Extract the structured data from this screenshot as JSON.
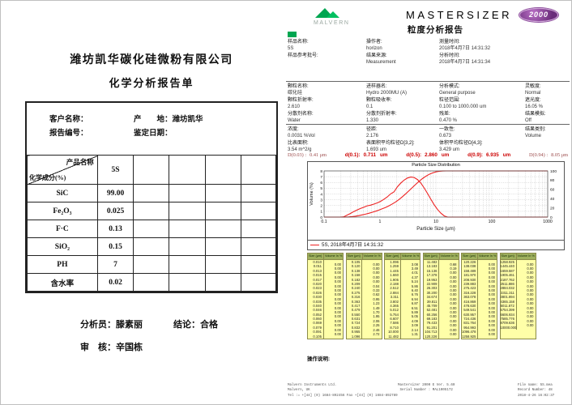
{
  "colors": {
    "accent_red": "#cc0000",
    "curve_red": "#ee2222",
    "malvern_green": "#00a651",
    "oval_purple": "#7b2f8e",
    "table_body_yellow": "#ffffa8",
    "table_header_green": "#9fb05e"
  },
  "left_report": {
    "company": "潍坊凯华碳化硅微粉有限公司",
    "title": "化学分析报告单",
    "fields": {
      "customer_label": "客户名称：",
      "origin_label": "产　　地：",
      "origin_value": "潍坊凯华",
      "report_no_label": "报告编号：",
      "date_label": "鉴定日期："
    },
    "table": {
      "corner_top": "产品名称",
      "corner_bottom": "化学成分(%)",
      "product": "5S",
      "empty_columns": 4,
      "rows": [
        {
          "name": "SiC",
          "value": "99.00"
        },
        {
          "name": "Fe₂O₃",
          "value": "0.025"
        },
        {
          "name": "F·C",
          "value": "0.13"
        },
        {
          "name": "SiO₂",
          "value": "0.15"
        },
        {
          "name": "PH",
          "value": "7"
        },
        {
          "name": "含水率",
          "value": "0.02"
        }
      ]
    },
    "signatures": {
      "analyst_label": "分析员：",
      "analyst": "滕素丽",
      "conclusion_label": "结论：",
      "conclusion": "合格",
      "reviewer_label": "审　核：",
      "reviewer": "辛国栋"
    }
  },
  "right_report": {
    "brand": {
      "malvern_label": "MALVERN",
      "product": "MASTERSIZER",
      "model": "2000",
      "report_title": "粒度分析报告"
    },
    "blocks": {
      "sample": [
        [
          {
            "l": "样品名称:",
            "v": "5S"
          },
          {
            "l": "操作者:",
            "v": "horizon"
          },
          {
            "l": "测量时间:",
            "v": "2018年4月7日 14:31:32"
          },
          {
            "l": "",
            "v": ""
          }
        ],
        [
          {
            "l": "样品参考批号:",
            "v": ""
          },
          {
            "l": "结果来源:",
            "v": "Measurement"
          },
          {
            "l": "分析时间:",
            "v": "2018年4月7日 14:31:34"
          },
          {
            "l": "",
            "v": ""
          }
        ]
      ],
      "params": [
        [
          {
            "l": "颗粒名称:",
            "v": "碳化硅"
          },
          {
            "l": "进样器名:",
            "v": "Hydro 2000MU (A)"
          },
          {
            "l": "分析模式:",
            "v": "General purpose"
          },
          {
            "l": "灵敏度:",
            "v": "Normal"
          }
        ],
        [
          {
            "l": "颗粒折射率:",
            "v": "2.610"
          },
          {
            "l": "颗粒吸收率:",
            "v": "0.1"
          },
          {
            "l": "粒径范围:",
            "v": "0.100 to 1000.000 um"
          },
          {
            "l": "遮光度:",
            "v": "16.05 %"
          }
        ],
        [
          {
            "l": "分散剂名称:",
            "v": "Water"
          },
          {
            "l": "分散剂折射率:",
            "v": "1.330"
          },
          {
            "l": "残差:",
            "v": "0.470 %"
          },
          {
            "l": "结果模拟:",
            "v": "Off"
          }
        ]
      ],
      "results": [
        [
          {
            "l": "浓度:",
            "v": "0.0031 %Vol"
          },
          {
            "l": "径距:",
            "v": "2.176"
          },
          {
            "l": "一致性:",
            "v": "0.673"
          },
          {
            "l": "结果类别:",
            "v": "Volume"
          }
        ],
        [
          {
            "l": "比表面积:",
            "v": "3.54 m^2/g"
          },
          {
            "l": "表面积平均粒径D[3,2]:",
            "v": "1.693 um"
          },
          {
            "l": "体积平均粒径D[4,3]:",
            "v": "3.429 um"
          },
          {
            "l": "",
            "v": ""
          }
        ]
      ]
    },
    "d_line": [
      {
        "label": "D(0.03) :",
        "value": "0.41 μm",
        "unit": "",
        "em": false
      },
      {
        "label": "d(0.1):",
        "value": "0.711",
        "unit": "um",
        "em": true
      },
      {
        "label": "d(0.5):",
        "value": "2.860",
        "unit": "um",
        "em": true
      },
      {
        "label": "d(0.9):",
        "value": "6.935",
        "unit": "um",
        "em": true
      },
      {
        "label": "D(0.94) :",
        "value": "8.05 μm",
        "unit": "",
        "em": false
      }
    ],
    "operation_label": "操作说明:",
    "footer": {
      "left": [
        "Malvern Instruments Ltd.",
        "Malvern, UK",
        "Tel := +[44] (0) 1684-892456 Fax +[44] (0) 1684-892789"
      ],
      "center": [
        "Mastersizer 2000 E Ver. 5.60",
        "Serial Number : MAL1005172"
      ],
      "right": [
        "File name: 5S.mea",
        "Record Number: 48",
        "2018-4-26 16:02:37"
      ]
    }
  },
  "chart_data": {
    "type": "line",
    "title": "Particle Size Distribution",
    "xlabel": "Particle Size (µm)",
    "ylabel": "Volume (%)",
    "x_scale": "log",
    "xlim": [
      0.1,
      1000
    ],
    "ylim_left": [
      0,
      8
    ],
    "ylim_right": [
      0,
      100
    ],
    "x_ticks": [
      0.1,
      1,
      10,
      100,
      1000
    ],
    "y_ticks_left": [
      0,
      1,
      2,
      3,
      4,
      5,
      6,
      7,
      8
    ],
    "y_ticks_right": [
      0,
      20,
      40,
      60,
      80,
      100
    ],
    "grid": true,
    "legend": "5S, 2018年4月7日 14:31:32",
    "legend_position": "bottom",
    "series_note": "red frequency curve (left axis, volume % per bin) and red cumulative undersize curve (right axis) derived from bins",
    "table_headers": {
      "size": "Size (µm)",
      "volume": "Volume In %"
    },
    "bins": {
      "edges_um": [
        0.01,
        0.011,
        0.013,
        0.015,
        0.017,
        0.02,
        0.023,
        0.026,
        0.03,
        0.035,
        0.04,
        0.046,
        0.052,
        0.06,
        0.069,
        0.079,
        0.091,
        0.105,
        0.12,
        0.138,
        0.158,
        0.182,
        0.209,
        0.24,
        0.275,
        0.316,
        0.363,
        0.417,
        0.479,
        0.55,
        0.631,
        0.724,
        0.832,
        0.955,
        1.096,
        1.259,
        1.445,
        1.66,
        1.905,
        2.188,
        2.512,
        2.884,
        3.311,
        3.802,
        4.365,
        5.012,
        5.754,
        6.607,
        7.586,
        8.71,
        10.0,
        11.482,
        13.183,
        15.136,
        17.378,
        19.953,
        22.909,
        26.303,
        30.2,
        34.674,
        39.811,
        45.709,
        52.481,
        60.256,
        69.183,
        79.433,
        91.201,
        104.713,
        120.226,
        138.038,
        158.489,
        181.97,
        208.93,
        239.883,
        275.423,
        316.228,
        363.078,
        416.869,
        478.63,
        549.541,
        630.957,
        724.436,
        831.764,
        954.993,
        1096.478,
        1258.925,
        1445.44,
        1659.587,
        1905.461,
        2187.762,
        2511.886,
        2884.032,
        3311.311,
        3801.894,
        4365.158,
        5011.872,
        5754.399,
        6606.934,
        7585.776,
        8709.636,
        10000.0
      ],
      "volume_percent": [
        0,
        0,
        0,
        0,
        0,
        0,
        0,
        0,
        0,
        0,
        0,
        0,
        0,
        0,
        0,
        0,
        0,
        0,
        0,
        0,
        0,
        0,
        0.04,
        0.33,
        0.62,
        0.95,
        1.23,
        1.49,
        1.7,
        1.95,
        2.06,
        2.25,
        2.46,
        2.72,
        3.08,
        3.49,
        4.01,
        4.37,
        5.24,
        5.86,
        6.4,
        6.76,
        6.94,
        6.87,
        6.51,
        5.89,
        5.05,
        4.09,
        3.09,
        2.14,
        1.31,
        0.68,
        0.19,
        0,
        0,
        0,
        0,
        0,
        0,
        0,
        0,
        0,
        0,
        0,
        0,
        0,
        0,
        0,
        0,
        0,
        0,
        0,
        0,
        0,
        0,
        0,
        0,
        0,
        0,
        0,
        0,
        0,
        0,
        0,
        0,
        0,
        0,
        0,
        0,
        0,
        0,
        0,
        0,
        0,
        0,
        0,
        0,
        0,
        0,
        0
      ]
    }
  }
}
